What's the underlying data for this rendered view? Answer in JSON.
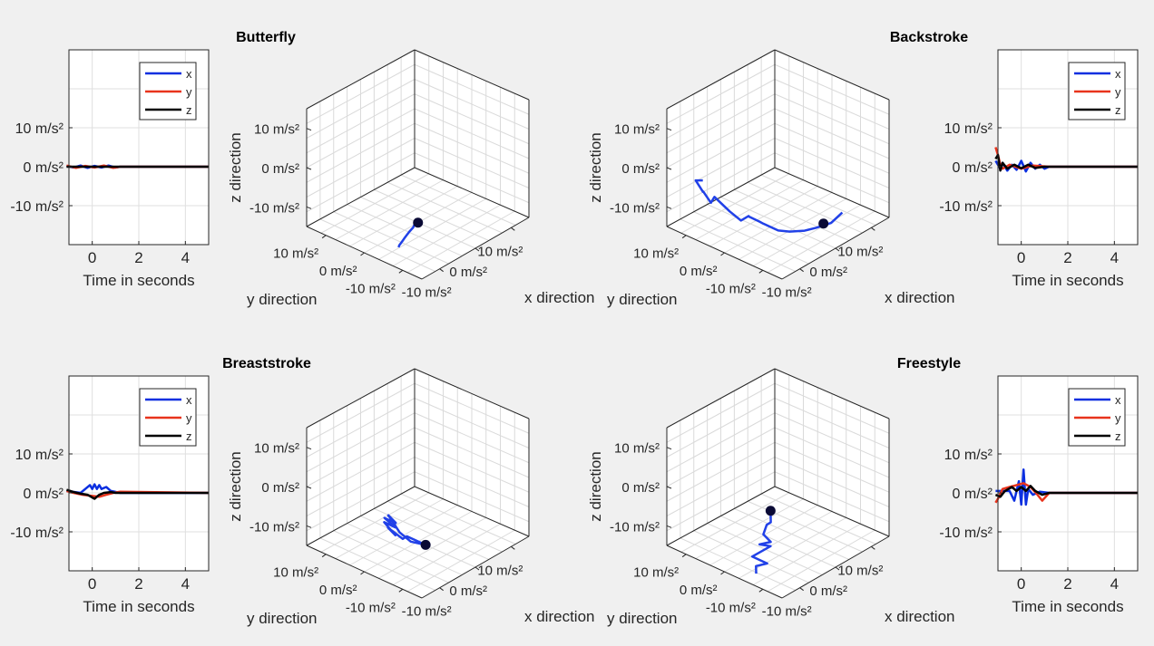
{
  "figure": {
    "background": "#f0f0f0",
    "colors": {
      "x": "#0b2fe0",
      "y": "#e8331c",
      "z": "#000000",
      "trajectory": "#2141e8",
      "marker": "#0a0a35"
    }
  },
  "chart_data": [
    {
      "type": "line",
      "xlabel": "Time in seconds",
      "ylabel": "",
      "xlim": [
        -1,
        5
      ],
      "ylim": [
        -20,
        30
      ],
      "xticks": [
        "0",
        "2",
        "4"
      ],
      "yticks": [
        "10 m/s²",
        "0 m/s²",
        "-10 m/s²"
      ],
      "grid": true,
      "legend": "top-right",
      "series": [
        {
          "name": "x",
          "x": [
            -1.1,
            -0.8,
            -0.5,
            -0.2,
            0.1,
            0.4,
            0.7,
            1.0,
            1.2,
            5
          ],
          "y": [
            0.2,
            -0.2,
            0.3,
            -0.3,
            0.2,
            -0.2,
            0.3,
            -0.2,
            0,
            0
          ]
        },
        {
          "name": "y",
          "x": [
            -1.1,
            -0.7,
            -0.3,
            0.1,
            0.5,
            0.9,
            1.2,
            5
          ],
          "y": [
            0.3,
            -0.3,
            0.2,
            -0.2,
            0.3,
            -0.3,
            0,
            0
          ]
        },
        {
          "name": "z",
          "x": [
            -1.1,
            5
          ],
          "y": [
            0,
            0
          ]
        }
      ]
    },
    {
      "type": "scatter",
      "title": "Butterfly",
      "xlabel": "x direction",
      "ylabel": "y direction",
      "zlabel": "z direction",
      "xticks": [
        "10 m/s²",
        "0 m/s²",
        "-10 m/s²"
      ],
      "yticks": [
        "10 m/s²",
        "0 m/s²",
        "-10 m/s²"
      ],
      "zticks": [
        "10 m/s²",
        "0 m/s²",
        "-10 m/s²"
      ],
      "grid": true,
      "trajectory": {
        "x": [
          0,
          -0.5,
          -1,
          -1.5,
          -2,
          -2.5,
          -3,
          -3.5,
          -3.6
        ],
        "y": [
          0,
          0.5,
          0.3,
          0.8,
          1,
          1.2,
          1.3,
          1.5,
          1.6
        ],
        "z": [
          0,
          -0.5,
          -1.5,
          -2.5,
          -3.5,
          -4.5,
          -5.5,
          -6.5,
          -7
        ]
      },
      "marker": {
        "x": 0,
        "y": 0,
        "z": 0
      }
    },
    {
      "type": "scatter",
      "title": "Backstroke",
      "xlabel": "x direction",
      "ylabel": "y direction",
      "zlabel": "z direction",
      "xticks": [
        "10 m/s²",
        "0 m/s²",
        "-10 m/s²"
      ],
      "yticks": [
        "10 m/s²",
        "0 m/s²",
        "-10 m/s²"
      ],
      "zticks": [
        "10 m/s²",
        "0 m/s²",
        "-10 m/s²"
      ],
      "grid": true,
      "trajectory": {
        "x": [
          14,
          12,
          9,
          6,
          3,
          0,
          -3,
          -3,
          -5,
          -4,
          -6,
          -8,
          -10,
          -12,
          -12,
          -14,
          -15,
          -16,
          -16
        ],
        "y": [
          -3,
          -2,
          -1,
          -1,
          0,
          0,
          1,
          2,
          3,
          4,
          4,
          5,
          5,
          5,
          6,
          6,
          5,
          6,
          4
        ],
        "z": [
          7,
          4,
          2,
          0,
          -1,
          -2,
          -1,
          0,
          1,
          2,
          0,
          2,
          3,
          4,
          3,
          5,
          4,
          7,
          6
        ]
      },
      "marker": {
        "x": 10,
        "y": -2,
        "z": 3
      }
    },
    {
      "type": "line",
      "xlabel": "Time in seconds",
      "ylabel": "",
      "xlim": [
        -1,
        5
      ],
      "ylim": [
        -20,
        30
      ],
      "xticks": [
        "0",
        "2",
        "4"
      ],
      "yticks": [
        "10 m/s²",
        "0 m/s²",
        "-10 m/s²"
      ],
      "grid": true,
      "legend": "top-right",
      "series": [
        {
          "name": "x",
          "x": [
            -1.1,
            -0.9,
            -0.8,
            -0.6,
            -0.4,
            -0.2,
            0,
            0.2,
            0.4,
            0.6,
            0.8,
            1.0,
            1.2,
            5
          ],
          "y": [
            1.5,
            -0.5,
            1,
            -1,
            0.5,
            -0.8,
            1.5,
            -1.2,
            1,
            -0.5,
            0.5,
            -0.5,
            0,
            0
          ]
        },
        {
          "name": "y",
          "x": [
            -1.1,
            -1.0,
            -0.9,
            -0.8,
            -0.5,
            0,
            0.5,
            1.2,
            5
          ],
          "y": [
            5,
            3,
            0.5,
            -0.5,
            0.5,
            -0.5,
            0.3,
            0,
            0
          ]
        },
        {
          "name": "z",
          "x": [
            -1.1,
            -1.0,
            -0.9,
            -0.8,
            -0.6,
            -0.3,
            0,
            0.3,
            0.6,
            1.0,
            5
          ],
          "y": [
            2,
            3,
            -1,
            1,
            -0.5,
            0.5,
            -0.4,
            0.5,
            -0.3,
            0,
            0
          ]
        }
      ]
    },
    {
      "type": "line",
      "xlabel": "Time in seconds",
      "ylabel": "",
      "xlim": [
        -1,
        5
      ],
      "ylim": [
        -20,
        30
      ],
      "xticks": [
        "0",
        "2",
        "4"
      ],
      "yticks": [
        "10 m/s²",
        "0 m/s²",
        "-10 m/s²"
      ],
      "grid": true,
      "legend": "top-right",
      "series": [
        {
          "name": "x",
          "x": [
            -1.1,
            -0.5,
            -0.3,
            -0.1,
            0,
            0.1,
            0.2,
            0.3,
            0.4,
            0.6,
            0.8,
            1.2,
            5
          ],
          "y": [
            0.5,
            0,
            1,
            2,
            1,
            2.2,
            1,
            2,
            1,
            1.5,
            0.5,
            0,
            0
          ]
        },
        {
          "name": "y",
          "x": [
            -1.1,
            -0.8,
            -0.4,
            0,
            0.3,
            0.6,
            0.9,
            1.2,
            5
          ],
          "y": [
            0.5,
            0,
            -0.5,
            -0.8,
            -1,
            -0.5,
            0,
            0.3,
            0
          ]
        },
        {
          "name": "z",
          "x": [
            -1.1,
            -0.8,
            -0.5,
            -0.2,
            0.1,
            0.3,
            0.5,
            0.8,
            1.0,
            5
          ],
          "y": [
            0.8,
            0.2,
            -0.2,
            -0.5,
            -1.5,
            -0.5,
            0,
            0.2,
            0,
            0
          ]
        }
      ]
    },
    {
      "type": "scatter",
      "title": "Breaststroke",
      "xlabel": "x direction",
      "ylabel": "y direction",
      "zlabel": "z direction",
      "xticks": [
        "10 m/s²",
        "0 m/s²",
        "-10 m/s²"
      ],
      "yticks": [
        "10 m/s²",
        "0 m/s²",
        "-10 m/s²"
      ],
      "zticks": [
        "10 m/s²",
        "0 m/s²",
        "-10 m/s²"
      ],
      "grid": true,
      "trajectory": {
        "x": [
          2,
          -2,
          -4,
          -6,
          -5,
          -7,
          -5,
          -6,
          -4,
          -5,
          -3,
          -4,
          -2,
          0,
          2
        ],
        "y": [
          0,
          1,
          0,
          2,
          1,
          2,
          1,
          3,
          2,
          3,
          3,
          4,
          3,
          2,
          0
        ],
        "z": [
          0,
          1,
          -1,
          2,
          0,
          3,
          2,
          5,
          4,
          6,
          5,
          7,
          3,
          1,
          0
        ]
      },
      "marker": {
        "x": 2,
        "y": 0,
        "z": 0
      }
    },
    {
      "type": "scatter",
      "title": "Freestyle",
      "xlabel": "x direction",
      "ylabel": "y direction",
      "zlabel": "z direction",
      "xticks": [
        "10 m/s²",
        "0 m/s²",
        "-10 m/s²"
      ],
      "yticks": [
        "10 m/s²",
        "0 m/s²",
        "-10 m/s²"
      ],
      "zticks": [
        "10 m/s²",
        "0 m/s²",
        "-10 m/s²"
      ],
      "grid": true,
      "trajectory": {
        "x": [
          -2,
          -1,
          -3,
          -2,
          -1,
          -3,
          -2,
          -4,
          -1,
          -3,
          -2
        ],
        "y": [
          0,
          1,
          0,
          2,
          1,
          2,
          0,
          3,
          2,
          3,
          4
        ],
        "z": [
          7,
          5,
          3,
          2,
          0,
          -1,
          -2,
          -4,
          -5,
          -6,
          -7
        ]
      },
      "marker": {
        "x": -2,
        "y": 0,
        "z": 7
      }
    },
    {
      "type": "line",
      "xlabel": "Time in seconds",
      "ylabel": "",
      "xlim": [
        -1,
        5
      ],
      "ylim": [
        -20,
        30
      ],
      "xticks": [
        "0",
        "2",
        "4"
      ],
      "yticks": [
        "10 m/s²",
        "0 m/s²",
        "-10 m/s²"
      ],
      "grid": true,
      "legend": "top-right",
      "series": [
        {
          "name": "x",
          "x": [
            -1.1,
            -0.5,
            -0.3,
            -0.1,
            0,
            0.1,
            0.2,
            0.3,
            0.5,
            0.8,
            1.2,
            5
          ],
          "y": [
            0.5,
            0.5,
            -2,
            3,
            -3,
            6,
            -3,
            1,
            -0.5,
            0.3,
            0,
            0
          ]
        },
        {
          "name": "y",
          "x": [
            -1.1,
            -1.0,
            -0.8,
            -0.5,
            -0.2,
            0.1,
            0.4,
            0.7,
            0.9,
            1.2,
            5
          ],
          "y": [
            -2.5,
            -1.5,
            1,
            1.5,
            2,
            2.5,
            1.5,
            -0.5,
            -2,
            0,
            0
          ]
        },
        {
          "name": "z",
          "x": [
            -1.1,
            -0.9,
            -0.7,
            -0.4,
            -0.2,
            0,
            0.2,
            0.4,
            0.6,
            0.9,
            1.2,
            5
          ],
          "y": [
            -0.5,
            -1,
            0.5,
            1.5,
            0.5,
            1.5,
            0.5,
            1.8,
            0.5,
            -0.5,
            0,
            0
          ]
        }
      ]
    }
  ]
}
